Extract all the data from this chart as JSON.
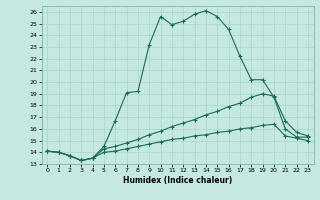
{
  "title": "",
  "xlabel": "Humidex (Indice chaleur)",
  "xlim": [
    -0.5,
    23.5
  ],
  "ylim": [
    13,
    26.5
  ],
  "yticks": [
    13,
    14,
    15,
    16,
    17,
    18,
    19,
    20,
    21,
    22,
    23,
    24,
    25,
    26
  ],
  "xticks": [
    0,
    1,
    2,
    3,
    4,
    5,
    6,
    7,
    8,
    9,
    10,
    11,
    12,
    13,
    14,
    15,
    16,
    17,
    18,
    19,
    20,
    21,
    22,
    23
  ],
  "bg_color": "#c5e8e2",
  "grid_color": "#a8d4cc",
  "line_color": "#1a6b5a",
  "line1_x": [
    0,
    1,
    2,
    3,
    4,
    5,
    6,
    7,
    8,
    9,
    10,
    11,
    12,
    13,
    14,
    15,
    16,
    17,
    18,
    19,
    20,
    21,
    22,
    23
  ],
  "line1_y": [
    14.1,
    14.0,
    13.7,
    13.3,
    13.5,
    14.5,
    16.7,
    19.1,
    19.2,
    23.2,
    25.6,
    24.9,
    25.2,
    25.8,
    26.1,
    25.6,
    24.5,
    22.2,
    20.2,
    20.2,
    18.7,
    16.0,
    15.3,
    15.3
  ],
  "line2_x": [
    0,
    1,
    2,
    3,
    4,
    5,
    6,
    7,
    8,
    9,
    10,
    11,
    12,
    13,
    14,
    15,
    16,
    17,
    18,
    19,
    20,
    21,
    22,
    23
  ],
  "line2_y": [
    14.1,
    14.0,
    13.7,
    13.3,
    13.5,
    14.3,
    14.5,
    14.8,
    15.1,
    15.5,
    15.8,
    16.2,
    16.5,
    16.8,
    17.2,
    17.5,
    17.9,
    18.2,
    18.7,
    19.0,
    18.8,
    16.7,
    15.7,
    15.4
  ],
  "line3_x": [
    0,
    1,
    2,
    3,
    4,
    5,
    6,
    7,
    8,
    9,
    10,
    11,
    12,
    13,
    14,
    15,
    16,
    17,
    18,
    19,
    20,
    21,
    22,
    23
  ],
  "line3_y": [
    14.1,
    14.0,
    13.7,
    13.3,
    13.5,
    14.0,
    14.1,
    14.3,
    14.5,
    14.7,
    14.9,
    15.1,
    15.2,
    15.4,
    15.5,
    15.7,
    15.8,
    16.0,
    16.1,
    16.3,
    16.4,
    15.4,
    15.2,
    15.0
  ]
}
